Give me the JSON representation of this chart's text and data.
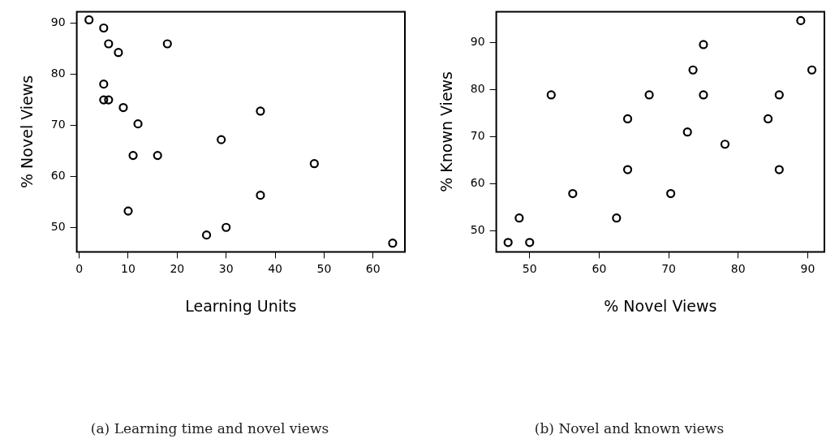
{
  "chart_data": [
    {
      "type": "scatter",
      "xlabel": "Learning Units",
      "ylabel": "% Novel Views",
      "color": "#000000",
      "marker": "circle",
      "x": [
        2,
        5,
        6,
        18,
        8,
        5,
        5,
        6,
        9,
        37,
        12,
        29,
        11,
        16,
        48,
        37,
        10,
        30,
        26,
        64
      ],
      "values": [
        90.7,
        89.1,
        86.0,
        86.0,
        84.3,
        78.1,
        75.0,
        75.0,
        73.5,
        72.8,
        70.3,
        67.2,
        64.1,
        64.1,
        62.5,
        56.3,
        53.2,
        50.0,
        48.5,
        46.9
      ],
      "xlim": [
        -0.5,
        66.5
      ],
      "ylim": [
        45.2,
        92.3
      ],
      "xticks": [
        0,
        10,
        20,
        30,
        40,
        50,
        60
      ],
      "yticks": [
        50,
        60,
        70,
        80,
        90
      ],
      "annotations": [
        "(a) Learning time and novel views"
      ]
    },
    {
      "type": "scatter",
      "xlabel": "% Novel Views",
      "ylabel": "% Known Views",
      "color": "#000000",
      "marker": "circle",
      "x": [
        46.9,
        48.5,
        50.0,
        53.1,
        56.2,
        62.5,
        64.1,
        64.1,
        67.2,
        70.3,
        72.7,
        73.5,
        75.0,
        75.0,
        78.1,
        84.3,
        85.9,
        85.9,
        89.0,
        90.6
      ],
      "values": [
        47.5,
        52.7,
        47.5,
        78.9,
        57.9,
        52.7,
        73.8,
        63.0,
        78.9,
        57.9,
        71.0,
        84.2,
        89.6,
        78.9,
        68.4,
        73.8,
        78.9,
        63.0,
        94.7,
        84.2
      ],
      "xlim": [
        45.2,
        92.4
      ],
      "ylim": [
        45.5,
        96.6
      ],
      "xticks": [
        50,
        60,
        70,
        80,
        90
      ],
      "yticks": [
        50,
        60,
        70,
        80,
        90
      ],
      "annotations": [
        "(b) Novel and known views"
      ]
    }
  ]
}
